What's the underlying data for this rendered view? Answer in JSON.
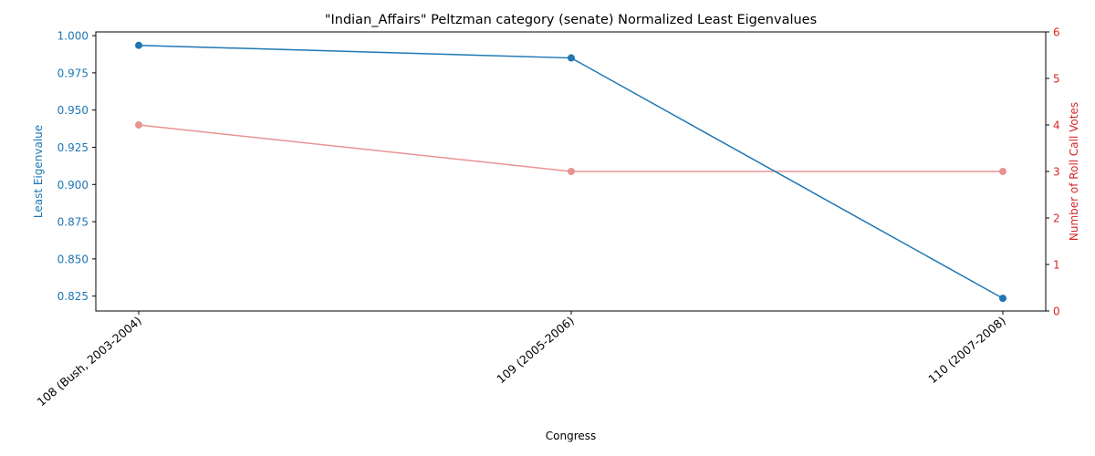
{
  "chart_data": {
    "type": "line",
    "title": "\"Indian_Affairs\" Peltzman category (senate) Normalized Least Eigenvalues",
    "xlabel": "Congress",
    "categories": [
      "108 (Bush, 2003-2004)",
      "109 (2005-2006)",
      "110 (2007-2008)"
    ],
    "left_axis": {
      "label": "Least Eigenvalue",
      "color": "#1f77b4",
      "ylim": [
        0.815,
        1.0025
      ],
      "ticks": [
        0.825,
        0.85,
        0.875,
        0.9,
        0.925,
        0.95,
        0.975,
        1.0
      ],
      "tick_labels": [
        "0.825",
        "0.850",
        "0.875",
        "0.900",
        "0.925",
        "0.950",
        "0.975",
        "1.000"
      ]
    },
    "right_axis": {
      "label": "Number of Roll Call Votes",
      "color": "#d62728",
      "ylim": [
        0,
        6
      ],
      "ticks": [
        0,
        1,
        2,
        3,
        4,
        5,
        6
      ],
      "tick_labels": [
        "0",
        "1",
        "2",
        "3",
        "4",
        "5",
        "6"
      ]
    },
    "series": [
      {
        "axis": "left",
        "color": "#1f77b4",
        "opacity": 1.0,
        "values": [
          0.9935,
          0.985,
          0.8235
        ]
      },
      {
        "axis": "right",
        "color": "#d62728",
        "opacity": 0.5,
        "values": [
          4,
          3,
          3
        ]
      }
    ],
    "grid": false,
    "legend": "none"
  }
}
